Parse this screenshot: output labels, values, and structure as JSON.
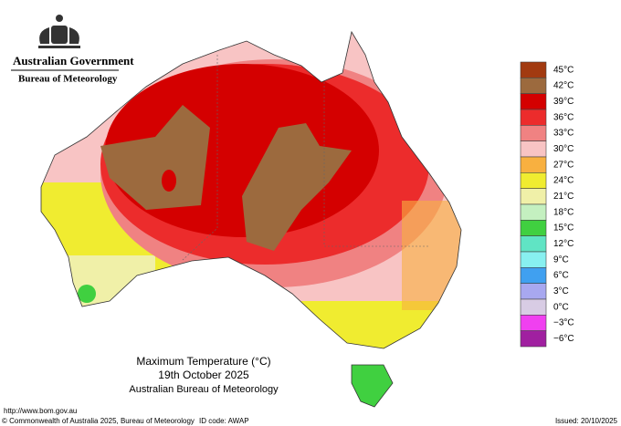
{
  "header": {
    "agency": "Australian Government",
    "bureau": "Bureau of Meteorology"
  },
  "legend": {
    "items": [
      {
        "label": "45°C",
        "color": "#a23a10"
      },
      {
        "label": "42°C",
        "color": "#9c6a3e"
      },
      {
        "label": "39°C",
        "color": "#d40000"
      },
      {
        "label": "36°C",
        "color": "#ec2c2c"
      },
      {
        "label": "33°C",
        "color": "#f08282"
      },
      {
        "label": "30°C",
        "color": "#f8c4c4"
      },
      {
        "label": "27°C",
        "color": "#f8b040"
      },
      {
        "label": "24°C",
        "color": "#f0ec30"
      },
      {
        "label": "21°C",
        "color": "#f0f0a8"
      },
      {
        "label": "18°C",
        "color": "#c4f0c0"
      },
      {
        "label": "15°C",
        "color": "#40d040"
      },
      {
        "label": "12°C",
        "color": "#60e4c4"
      },
      {
        "label": "9°C",
        "color": "#88f0f0"
      },
      {
        "label": "6°C",
        "color": "#40a0f0"
      },
      {
        "label": "3°C",
        "color": "#a8a8f0"
      },
      {
        "label": "0°C",
        "color": "#d8cce4"
      },
      {
        "label": "−3°C",
        "color": "#f040f0"
      },
      {
        "label": "−6°C",
        "color": "#a020a0"
      }
    ]
  },
  "caption": {
    "title": "Maximum Temperature (°C)",
    "date": "19th October 2025",
    "source": "Australian Bureau of Meteorology"
  },
  "footer": {
    "url": "http://www.bom.gov.au",
    "copyright": "© Commonwealth of Australia 2025, Bureau of Meteorology",
    "id_code": "ID code: AWAP",
    "issued": "Issued: 20/10/2025"
  }
}
